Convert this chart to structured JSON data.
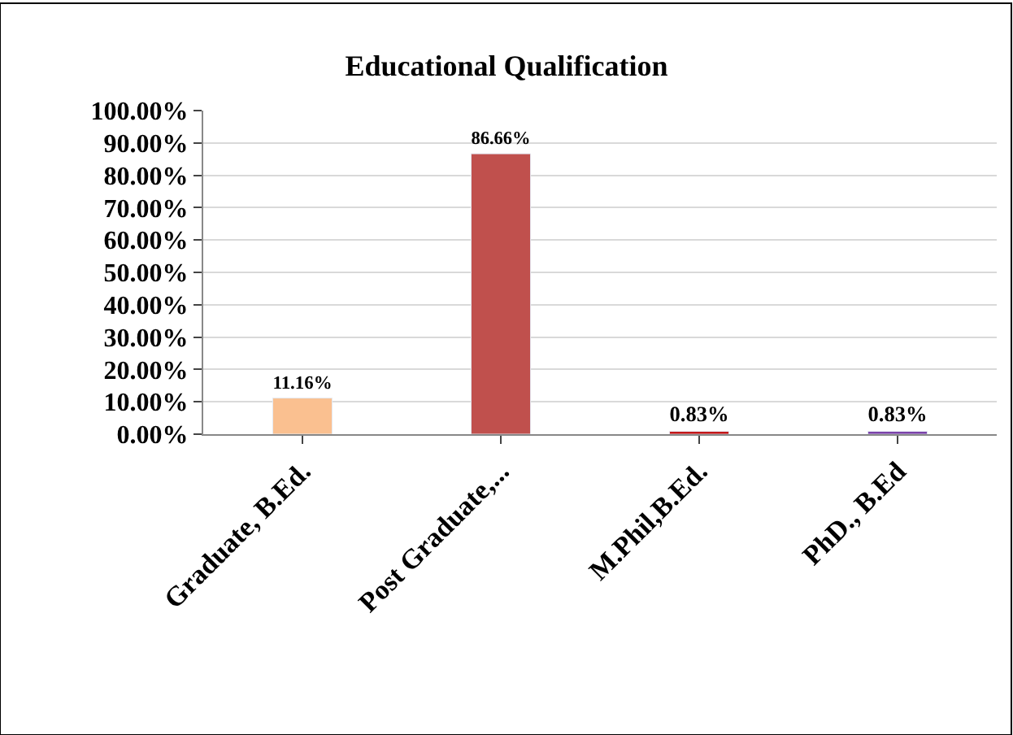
{
  "chart_data": {
    "type": "bar",
    "title": "Educational Qualification",
    "categories": [
      "Graduate, B.Ed.",
      "Post Graduate,...",
      "M.Phil,B.Ed.",
      "PhD., B.Ed"
    ],
    "values": [
      11.16,
      86.66,
      0.83,
      0.83
    ],
    "colors": [
      "#fac090",
      "#c0504d",
      "#c00000",
      "#7030a0"
    ],
    "value_labels": [
      "11.16%",
      "86.66%",
      "0.83%",
      "0.83%"
    ],
    "ylim": [
      0,
      100
    ],
    "yticks": [
      {
        "value": 0,
        "label": "0.00%"
      },
      {
        "value": 10,
        "label": "10.00%"
      },
      {
        "value": 20,
        "label": "20.00%"
      },
      {
        "value": 30,
        "label": "30.00%"
      },
      {
        "value": 40,
        "label": "40.00%"
      },
      {
        "value": 50,
        "label": "50.00%"
      },
      {
        "value": 60,
        "label": "60.00%"
      },
      {
        "value": 70,
        "label": "70.00%"
      },
      {
        "value": 80,
        "label": "80.00%"
      },
      {
        "value": 90,
        "label": "90.00%"
      },
      {
        "value": 100,
        "label": "100.00%"
      }
    ],
    "grid": "y"
  }
}
